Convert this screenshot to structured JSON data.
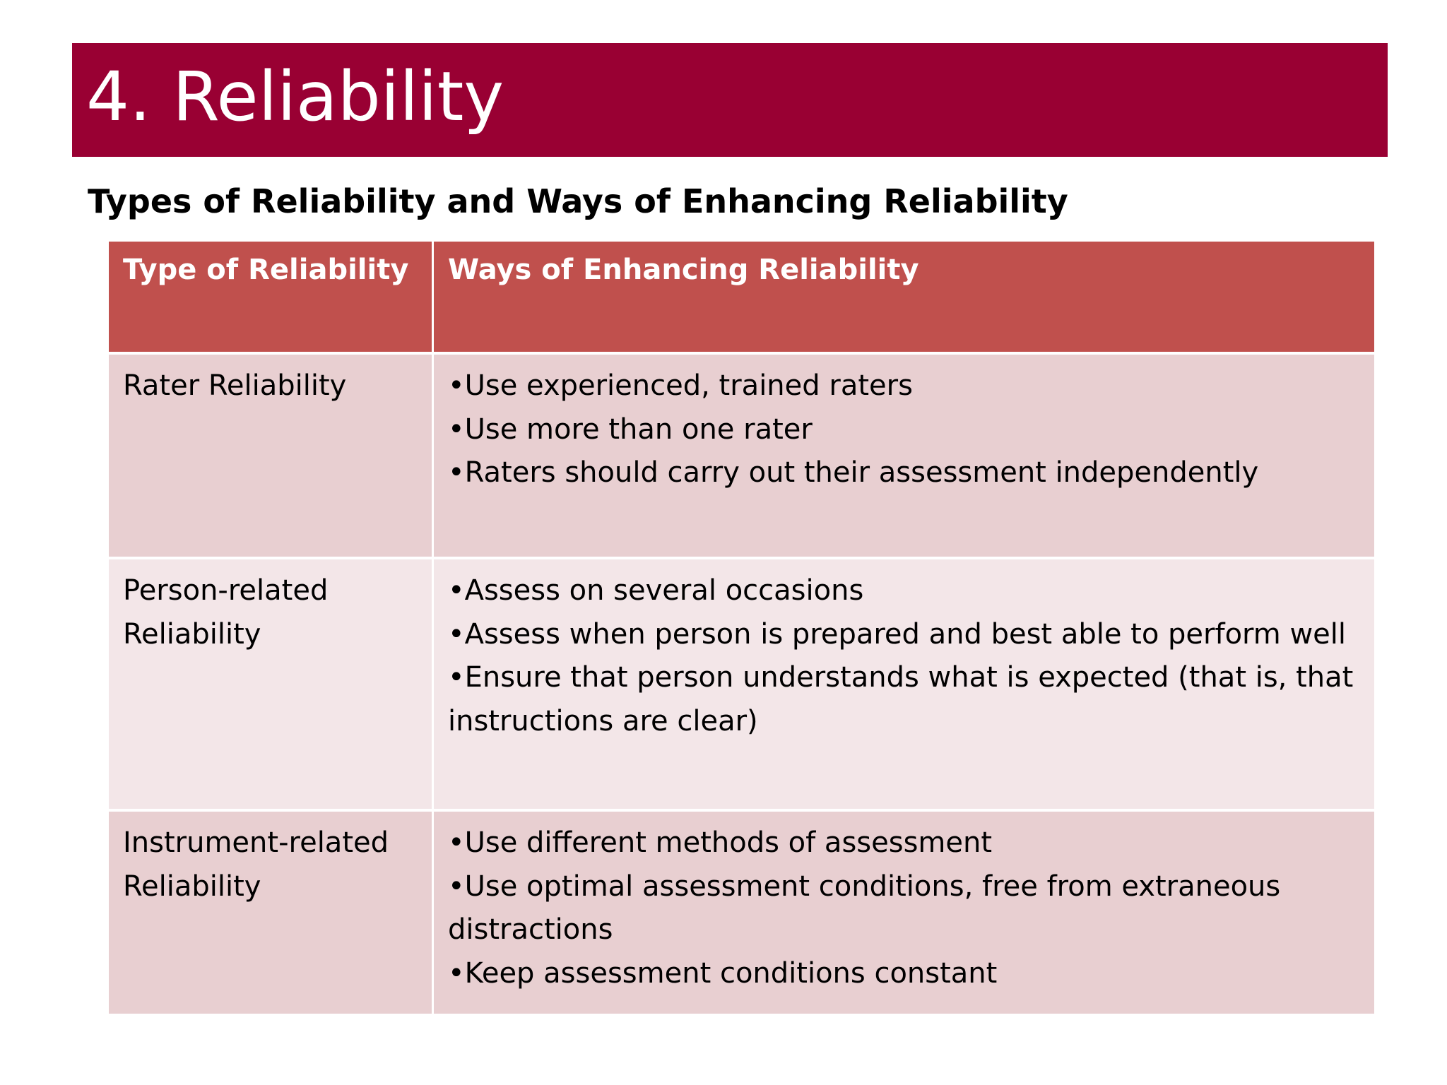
{
  "slide": {
    "title": "4. Reliability",
    "subtitle": "Types of Reliability and Ways of Enhancing Reliability"
  },
  "table": {
    "headers": [
      "Type of Reliability",
      "Ways of Enhancing Reliability"
    ],
    "rows": [
      {
        "type": "Rater Reliability",
        "ways": [
          "•Use experienced, trained raters",
          "•Use more than one rater",
          "•Raters should carry out their assessment independently"
        ]
      },
      {
        "type": "Person-related Reliability",
        "ways": [
          "•Assess on several occasions",
          "•Assess when person is prepared and best able to perform well",
          "•Ensure that person understands what is expected (that is, that instructions are clear)"
        ]
      },
      {
        "type": "Instrument-related Reliability",
        "ways": [
          "•Use different methods of assessment",
          "•Use optimal assessment conditions, free from extraneous distractions",
          "•Keep assessment conditions constant"
        ]
      }
    ]
  },
  "colors": {
    "title_bar": "#990033",
    "header_row": "#c0504d",
    "row_dark": "#e8cfd1",
    "row_light": "#f3e6e8"
  }
}
